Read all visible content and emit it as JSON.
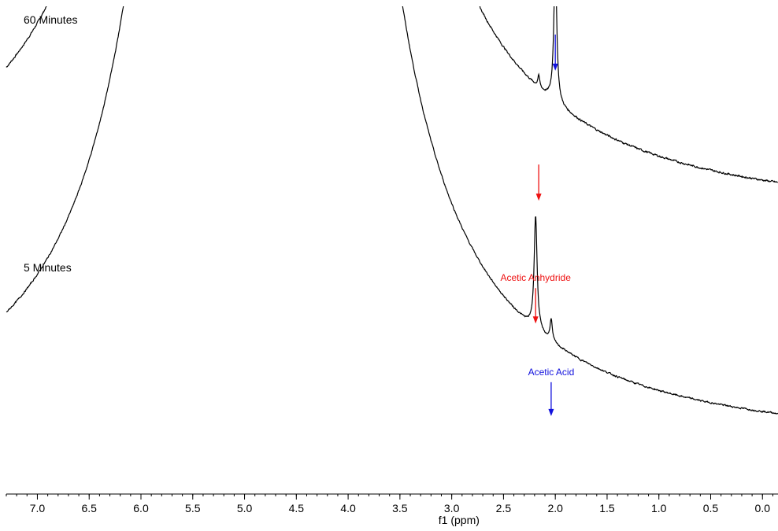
{
  "chart_data": {
    "type": "line",
    "title": "",
    "xlabel": "f1 (ppm)",
    "ylabel": "",
    "x_reversed": true,
    "xlim": [
      7.3,
      -0.15
    ],
    "major_ticks": [
      7.0,
      6.5,
      6.0,
      5.5,
      5.0,
      4.5,
      4.0,
      3.5,
      3.0,
      2.5,
      2.0,
      1.5,
      1.0,
      0.5,
      0.0
    ],
    "tick_labels": [
      "7.0",
      "6.5",
      "6.0",
      "5.5",
      "5.0",
      "4.5",
      "4.0",
      "3.5",
      "3.0",
      "2.5",
      "2.0",
      "1.5",
      "1.0",
      "0.5",
      "0.0"
    ],
    "minor_tick_step": 0.1,
    "grid": false,
    "colors": {
      "line": "#000000",
      "anhydride": "#ee1111",
      "acid": "#1111dd"
    },
    "spectra": [
      {
        "label": "60 Minutes",
        "baseline": [
          [
            7.3,
            1.0
          ],
          [
            0.0,
            0.0
          ]
        ],
        "solvent_peak": {
          "center": 4.82,
          "width": 0.16,
          "height": 160
        },
        "peaks": [
          {
            "compound": "Acetic Anhydride",
            "ppm": 2.16,
            "height": 0.05,
            "width": 0.012
          },
          {
            "compound": "Acetic Acid",
            "ppm": 2.0,
            "height": 0.62,
            "width": 0.017
          }
        ],
        "arrows": [
          {
            "compound": "Acetic Anhydride",
            "ppm": 2.16,
            "color_key": "anhydride"
          },
          {
            "compound": "Acetic Acid",
            "ppm": 2.0,
            "color_key": "acid"
          }
        ]
      },
      {
        "label": "5 Minutes",
        "baseline": [
          [
            7.3,
            1.0
          ],
          [
            0.0,
            0.0
          ]
        ],
        "solvent_peak": {
          "center": 4.82,
          "width": 0.16,
          "height": 160
        },
        "peaks": [
          {
            "compound": "Acetic Anhydride",
            "ppm": 2.19,
            "height": 0.58,
            "width": 0.017
          },
          {
            "compound": "Acetic Acid",
            "ppm": 2.04,
            "height": 0.11,
            "width": 0.013
          }
        ],
        "arrows": [
          {
            "compound": "Acetic Anhydride",
            "ppm": 2.19,
            "color_key": "anhydride",
            "text": "Acetic Anhydride"
          },
          {
            "compound": "Acetic Acid",
            "ppm": 2.04,
            "color_key": "acid",
            "text": "Acetic Acid"
          }
        ]
      }
    ]
  }
}
